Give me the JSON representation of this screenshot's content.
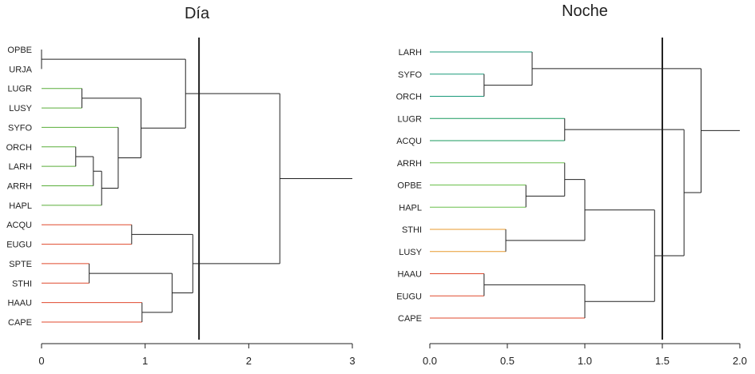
{
  "chart_data": [
    {
      "type": "dendrogram",
      "title": "Día",
      "xlim": [
        0,
        3
      ],
      "ticks": [
        "0",
        "1",
        "2",
        "3"
      ],
      "tick_values": [
        0,
        1,
        2,
        3
      ],
      "cut_height": 1.52,
      "leaves": [
        {
          "label": "OPBE",
          "color": "#222222"
        },
        {
          "label": "URJA",
          "color": "#222222"
        },
        {
          "label": "LUGR",
          "color": "#5aae3a"
        },
        {
          "label": "LUSY",
          "color": "#5aae3a"
        },
        {
          "label": "SYFO",
          "color": "#5aae3a"
        },
        {
          "label": "ORCH",
          "color": "#5aae3a"
        },
        {
          "label": "LARH",
          "color": "#5aae3a"
        },
        {
          "label": "ARRH",
          "color": "#5aae3a"
        },
        {
          "label": "HAPL",
          "color": "#5aae3a"
        },
        {
          "label": "ACQU",
          "color": "#e04a2e"
        },
        {
          "label": "EUGU",
          "color": "#e04a2e"
        },
        {
          "label": "SPTE",
          "color": "#e04a2e"
        },
        {
          "label": "STHI",
          "color": "#e04a2e"
        },
        {
          "label": "HAAU",
          "color": "#e04a2e"
        },
        {
          "label": "CAPE",
          "color": "#e04a2e"
        }
      ],
      "merges": [
        {
          "a": 0,
          "b": 1,
          "h": 0.0
        },
        {
          "a": 2,
          "b": 3,
          "h": 0.39
        },
        {
          "a": 5,
          "b": 6,
          "h": 0.33
        },
        {
          "a": -3,
          "b": 7,
          "h": 0.5
        },
        {
          "a": -4,
          "b": 8,
          "h": 0.58
        },
        {
          "a": 4,
          "b": -5,
          "h": 0.74
        },
        {
          "a": -2,
          "b": -6,
          "h": 0.96
        },
        {
          "a": -1,
          "b": -7,
          "h": 1.39
        },
        {
          "a": 9,
          "b": 10,
          "h": 0.87
        },
        {
          "a": 11,
          "b": 12,
          "h": 0.46
        },
        {
          "a": 13,
          "b": 14,
          "h": 0.97
        },
        {
          "a": -10,
          "b": -11,
          "h": 1.26
        },
        {
          "a": -9,
          "b": -12,
          "h": 1.46
        },
        {
          "a": -8,
          "b": -13,
          "h": 2.3
        }
      ],
      "root_tail": 3.0
    },
    {
      "type": "dendrogram",
      "title": "Noche",
      "xlim": [
        0,
        2
      ],
      "ticks": [
        "0.0",
        "0.5",
        "1.0",
        "1.5",
        "2.0"
      ],
      "tick_values": [
        0,
        0.5,
        1.0,
        1.5,
        2.0
      ],
      "cut_height": 1.5,
      "leaves": [
        {
          "label": "LARH",
          "color": "#1a9a7a"
        },
        {
          "label": "SYFO",
          "color": "#1a9a7a"
        },
        {
          "label": "ORCH",
          "color": "#1a9a7a"
        },
        {
          "label": "LUGR",
          "color": "#1a9a5e"
        },
        {
          "label": "ACQU",
          "color": "#1a9a5e"
        },
        {
          "label": "ARRH",
          "color": "#6abf4b"
        },
        {
          "label": "OPBE",
          "color": "#6abf4b"
        },
        {
          "label": "HAPL",
          "color": "#6abf4b"
        },
        {
          "label": "STHI",
          "color": "#e89a2e"
        },
        {
          "label": "LUSY",
          "color": "#e89a2e"
        },
        {
          "label": "HAAU",
          "color": "#e04a2e"
        },
        {
          "label": "EUGU",
          "color": "#e04a2e"
        },
        {
          "label": "CAPE",
          "color": "#e04a2e"
        }
      ],
      "merges": [
        {
          "a": 1,
          "b": 2,
          "h": 0.35
        },
        {
          "a": 0,
          "b": -1,
          "h": 0.66
        },
        {
          "a": 3,
          "b": 4,
          "h": 0.87
        },
        {
          "a": 6,
          "b": 7,
          "h": 0.62
        },
        {
          "a": 5,
          "b": -4,
          "h": 0.87
        },
        {
          "a": 8,
          "b": 9,
          "h": 0.49
        },
        {
          "a": -5,
          "b": -6,
          "h": 1.0
        },
        {
          "a": 10,
          "b": 11,
          "h": 0.35
        },
        {
          "a": -8,
          "b": 12,
          "h": 1.0
        },
        {
          "a": -7,
          "b": -9,
          "h": 1.45
        },
        {
          "a": -3,
          "b": -10,
          "h": 1.64
        },
        {
          "a": -2,
          "b": -11,
          "h": 1.75
        }
      ],
      "root_tail": 2.0
    }
  ]
}
